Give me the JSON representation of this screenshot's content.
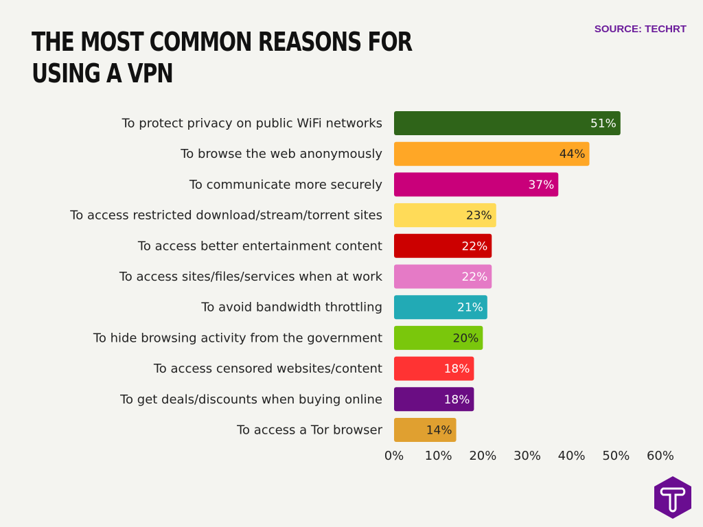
{
  "title": "THE MOST COMMON REASONS FOR USING A VPN",
  "source": "SOURCE: TECHRT",
  "logo": {
    "name": "techrt-logo",
    "text": "T",
    "color": "#6a0d91"
  },
  "chart_data": {
    "type": "bar",
    "orientation": "horizontal",
    "title": "THE MOST COMMON REASONS FOR USING A VPN",
    "categories": [
      "To protect privacy on public WiFi networks",
      "To browse the web anonymously",
      "To communicate more securely",
      "To access restricted download/stream/torrent sites",
      "To access better entertainment content",
      "To access sites/files/services when at work",
      "To avoid bandwidth throttling",
      "To hide browsing activity from the government",
      "To access censored websites/content",
      "To get deals/discounts when buying online",
      "To access a Tor browser"
    ],
    "values": [
      51,
      44,
      37,
      23,
      22,
      22,
      21,
      20,
      18,
      18,
      14
    ],
    "data_labels": [
      "51%",
      "44%",
      "37%",
      "23%",
      "22%",
      "22%",
      "21%",
      "20%",
      "18%",
      "18%",
      "14%"
    ],
    "colors": [
      "#2f6419",
      "#ffa726",
      "#c9007a",
      "#ffdb58",
      "#cc0000",
      "#e57ac6",
      "#22aab5",
      "#7ac70c",
      "#ff3333",
      "#6a0d83",
      "#e0a030"
    ],
    "label_colors": [
      "#ffffff",
      "#222222",
      "#ffffff",
      "#222222",
      "#ffffff",
      "#ffffff",
      "#ffffff",
      "#222222",
      "#ffffff",
      "#ffffff",
      "#222222"
    ],
    "xlim": [
      0,
      60
    ],
    "xticks": [
      "0%",
      "10%",
      "20%",
      "30%",
      "40%",
      "50%",
      "60%"
    ],
    "grid": false,
    "legend": "none"
  }
}
